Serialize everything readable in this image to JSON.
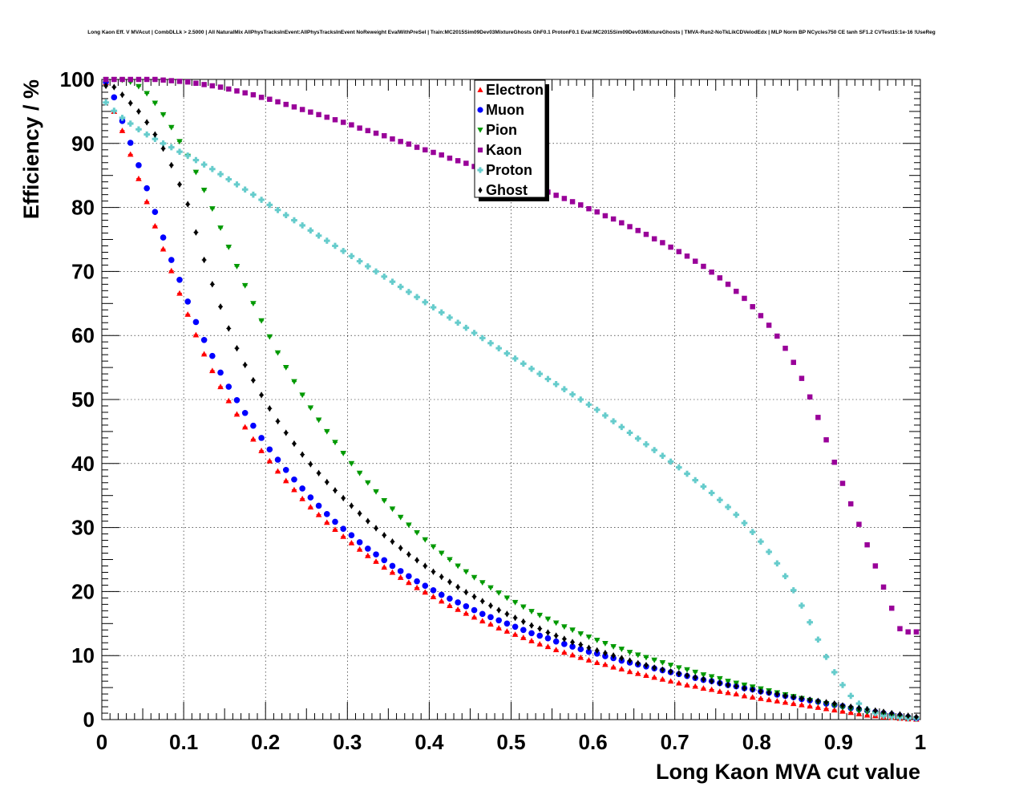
{
  "chart_data": {
    "type": "scatter",
    "title": "Long Kaon Eff. V MVAcut | CombDLLk > 2.5000 | All NaturalMix AllPhysTracksInEvent:AllPhysTracksInEvent NoReweight EvalWithPreSel | Train:MC2015Sim09Dev03MixtureGhosts GhF0.1 ProtonF0.1 Eval:MC2015Sim09Dev03MixtureGhosts | TMVA-Run2-NoTkLikCDVelodEdx | MLP Norm BP NCycles750 CE tanh SF1.2 CVTest15:1e-16 !UseReg",
    "xlabel": "Long Kaon MVA cut value",
    "ylabel": "Efficiency / %",
    "xlim": [
      0,
      1
    ],
    "ylim": [
      0,
      100
    ],
    "x_ticks": [
      "0",
      "0.1",
      "0.2",
      "0.3",
      "0.4",
      "0.5",
      "0.6",
      "0.7",
      "0.8",
      "0.9",
      "1"
    ],
    "y_ticks": [
      "0",
      "10",
      "20",
      "30",
      "40",
      "50",
      "60",
      "70",
      "80",
      "90",
      "100"
    ],
    "grid": true,
    "legend_position": "top-center",
    "x": [
      0.005,
      0.015,
      0.025,
      0.035,
      0.045,
      0.055,
      0.065,
      0.075,
      0.085,
      0.095,
      0.105,
      0.115,
      0.125,
      0.135,
      0.145,
      0.155,
      0.165,
      0.175,
      0.185,
      0.195,
      0.205,
      0.215,
      0.225,
      0.235,
      0.245,
      0.255,
      0.265,
      0.275,
      0.285,
      0.295,
      0.305,
      0.315,
      0.325,
      0.335,
      0.345,
      0.355,
      0.365,
      0.375,
      0.385,
      0.395,
      0.405,
      0.415,
      0.425,
      0.435,
      0.445,
      0.455,
      0.465,
      0.475,
      0.485,
      0.495,
      0.505,
      0.515,
      0.525,
      0.535,
      0.545,
      0.555,
      0.565,
      0.575,
      0.585,
      0.595,
      0.605,
      0.615,
      0.625,
      0.635,
      0.645,
      0.655,
      0.665,
      0.675,
      0.685,
      0.695,
      0.705,
      0.715,
      0.725,
      0.735,
      0.745,
      0.755,
      0.765,
      0.775,
      0.785,
      0.795,
      0.805,
      0.815,
      0.825,
      0.835,
      0.845,
      0.855,
      0.865,
      0.875,
      0.885,
      0.895,
      0.905,
      0.915,
      0.925,
      0.935,
      0.945,
      0.955,
      0.965,
      0.975,
      0.985,
      0.995
    ],
    "series": [
      {
        "name": "Electron",
        "color": "#ff0000",
        "marker": "triangle-up",
        "values": [
          99.5,
          95.0,
          92.0,
          88.3,
          84.5,
          80.9,
          77.1,
          73.5,
          70.1,
          66.6,
          63.3,
          60.1,
          57.1,
          54.5,
          52.0,
          49.8,
          47.7,
          45.7,
          43.8,
          42.0,
          40.4,
          38.8,
          37.3,
          35.9,
          34.5,
          33.2,
          32.0,
          30.8,
          29.7,
          28.6,
          27.6,
          26.6,
          25.6,
          24.7,
          23.8,
          23.0,
          22.2,
          21.4,
          20.6,
          19.9,
          19.2,
          18.5,
          17.8,
          17.2,
          16.6,
          16.0,
          15.4,
          14.9,
          14.3,
          13.8,
          13.3,
          12.8,
          12.3,
          11.8,
          11.4,
          10.9,
          10.5,
          10.1,
          9.7,
          9.3,
          8.9,
          8.6,
          8.2,
          7.9,
          7.5,
          7.2,
          6.9,
          6.6,
          6.3,
          6.0,
          5.7,
          5.4,
          5.2,
          4.9,
          4.7,
          4.4,
          4.2,
          4.0,
          3.7,
          3.5,
          3.3,
          3.1,
          2.9,
          2.7,
          2.5,
          2.3,
          2.1,
          1.9,
          1.7,
          1.5,
          1.3,
          1.1,
          0.9,
          0.7,
          0.6,
          0.4,
          0.3,
          0.2,
          0.1,
          0.05
        ]
      },
      {
        "name": "Muon",
        "color": "#0000ff",
        "marker": "circle",
        "values": [
          99.6,
          97.2,
          93.5,
          90.1,
          86.6,
          83.0,
          79.3,
          75.3,
          71.8,
          68.7,
          65.3,
          62.1,
          59.3,
          56.8,
          54.2,
          52.0,
          49.9,
          47.9,
          45.9,
          44.0,
          42.2,
          40.6,
          39.0,
          37.5,
          36.1,
          34.7,
          33.4,
          32.1,
          30.9,
          29.8,
          28.8,
          27.7,
          26.7,
          25.8,
          24.9,
          24.0,
          23.2,
          22.4,
          21.6,
          20.9,
          20.2,
          19.5,
          18.9,
          18.3,
          17.7,
          17.1,
          16.5,
          16.0,
          15.5,
          15.0,
          14.5,
          14.0,
          13.5,
          13.1,
          12.7,
          12.2,
          11.8,
          11.4,
          11.0,
          10.6,
          10.3,
          9.9,
          9.6,
          9.2,
          8.9,
          8.6,
          8.3,
          8.0,
          7.7,
          7.4,
          7.1,
          6.8,
          6.5,
          6.2,
          6.0,
          5.7,
          5.4,
          5.2,
          4.9,
          4.7,
          4.4,
          4.2,
          3.9,
          3.7,
          3.5,
          3.2,
          3.0,
          2.8,
          2.5,
          2.3,
          2.1,
          1.8,
          1.6,
          1.4,
          1.2,
          1.0,
          0.8,
          0.6,
          0.4,
          0.2
        ]
      },
      {
        "name": "Pion",
        "color": "#009900",
        "marker": "triangle-down",
        "values": [
          100.0,
          100.0,
          99.9,
          99.6,
          98.9,
          97.8,
          96.3,
          94.5,
          92.5,
          90.3,
          88.0,
          85.5,
          82.7,
          79.8,
          76.8,
          73.8,
          70.8,
          67.8,
          65.0,
          62.3,
          59.8,
          57.3,
          55.0,
          52.8,
          50.7,
          48.7,
          46.8,
          45.0,
          43.3,
          41.6,
          40.0,
          38.5,
          37.0,
          35.6,
          34.2,
          32.9,
          31.6,
          30.4,
          29.2,
          28.1,
          27.0,
          26.0,
          25.0,
          24.0,
          23.1,
          22.2,
          21.4,
          20.6,
          19.8,
          19.0,
          18.3,
          17.6,
          16.9,
          16.3,
          15.7,
          15.1,
          14.5,
          14.0,
          13.4,
          12.9,
          12.4,
          11.9,
          11.4,
          11.0,
          10.5,
          10.1,
          9.7,
          9.3,
          8.9,
          8.5,
          8.1,
          7.8,
          7.4,
          7.0,
          6.7,
          6.4,
          6.0,
          5.7,
          5.4,
          5.1,
          4.8,
          4.5,
          4.2,
          3.9,
          3.6,
          3.3,
          3.0,
          2.7,
          2.5,
          2.2,
          1.9,
          1.7,
          1.4,
          1.2,
          0.9,
          0.7,
          0.5,
          0.3,
          0.2,
          0.1
        ]
      },
      {
        "name": "Kaon",
        "color": "#990099",
        "marker": "square",
        "values": [
          100.0,
          100.0,
          100.0,
          100.0,
          100.0,
          100.0,
          100.0,
          99.9,
          99.8,
          99.7,
          99.6,
          99.4,
          99.2,
          99.0,
          98.8,
          98.5,
          98.2,
          97.9,
          97.6,
          97.2,
          96.9,
          96.5,
          96.1,
          95.7,
          95.3,
          94.9,
          94.5,
          94.1,
          93.7,
          93.3,
          92.9,
          92.4,
          92.0,
          91.6,
          91.2,
          90.7,
          90.3,
          89.9,
          89.4,
          89.0,
          88.6,
          88.2,
          87.7,
          87.3,
          86.9,
          86.4,
          86.0,
          85.5,
          85.1,
          84.7,
          84.2,
          83.8,
          83.3,
          82.9,
          82.4,
          81.9,
          81.4,
          80.9,
          80.4,
          79.8,
          79.3,
          78.7,
          78.2,
          77.6,
          77.0,
          76.4,
          75.8,
          75.1,
          74.5,
          73.8,
          73.1,
          72.4,
          71.6,
          70.8,
          69.9,
          69.0,
          68.0,
          66.9,
          65.8,
          64.5,
          63.1,
          61.6,
          59.9,
          58.0,
          55.8,
          53.3,
          50.4,
          47.2,
          43.7,
          40.2,
          36.9,
          33.7,
          30.5,
          27.3,
          24.0,
          20.7,
          17.4,
          14.2,
          13.7,
          13.7
        ]
      },
      {
        "name": "Proton",
        "color": "#66cccc",
        "marker": "cross",
        "values": [
          96.4,
          95.1,
          94.0,
          93.1,
          92.2,
          91.4,
          90.7,
          90.0,
          89.4,
          88.7,
          88.1,
          87.4,
          86.7,
          86.0,
          85.2,
          84.4,
          83.6,
          82.8,
          82.0,
          81.2,
          80.4,
          79.6,
          78.8,
          78.0,
          77.2,
          76.4,
          75.6,
          74.8,
          74.0,
          73.2,
          72.4,
          71.6,
          70.8,
          70.0,
          69.2,
          68.4,
          67.6,
          66.8,
          66.0,
          65.2,
          64.4,
          63.6,
          62.8,
          62.0,
          61.2,
          60.4,
          59.6,
          58.8,
          58.0,
          57.2,
          56.4,
          55.6,
          54.8,
          54.0,
          53.2,
          52.4,
          51.6,
          50.8,
          50.0,
          49.2,
          48.4,
          47.5,
          46.6,
          45.7,
          44.8,
          43.9,
          43.0,
          42.1,
          41.2,
          40.3,
          39.4,
          38.4,
          37.4,
          36.4,
          35.4,
          34.3,
          33.2,
          32.0,
          30.7,
          29.3,
          27.8,
          26.2,
          24.4,
          22.4,
          20.2,
          17.8,
          15.2,
          12.5,
          9.8,
          7.4,
          5.4,
          3.7,
          2.5,
          1.6,
          1.0,
          0.6,
          0.4,
          0.3,
          0.2,
          0.2
        ]
      },
      {
        "name": "Ghost",
        "color": "#000000",
        "marker": "diamond",
        "values": [
          99.0,
          98.8,
          97.6,
          96.3,
          95.0,
          93.3,
          91.4,
          89.2,
          86.6,
          83.6,
          80.5,
          76.1,
          71.8,
          68.0,
          64.5,
          61.1,
          58.0,
          55.4,
          53.0,
          50.7,
          48.6,
          46.6,
          44.8,
          43.1,
          41.4,
          39.9,
          38.5,
          37.1,
          35.8,
          34.6,
          33.4,
          32.2,
          31.0,
          29.9,
          28.8,
          27.8,
          26.8,
          25.8,
          24.9,
          24.0,
          23.1,
          22.3,
          21.5,
          20.7,
          19.9,
          19.2,
          18.5,
          17.8,
          17.1,
          16.5,
          15.9,
          15.3,
          14.7,
          14.2,
          13.6,
          13.1,
          12.6,
          12.1,
          11.7,
          11.2,
          10.8,
          10.4,
          10.0,
          9.6,
          9.2,
          8.8,
          8.5,
          8.1,
          7.8,
          7.5,
          7.2,
          6.9,
          6.6,
          6.3,
          6.0,
          5.7,
          5.4,
          5.2,
          4.9,
          4.7,
          4.4,
          4.2,
          4.0,
          3.7,
          3.5,
          3.3,
          3.1,
          2.9,
          2.7,
          2.5,
          2.2,
          2.0,
          1.8,
          1.6,
          1.4,
          1.2,
          1.0,
          0.8,
          0.6,
          0.4
        ]
      }
    ]
  }
}
